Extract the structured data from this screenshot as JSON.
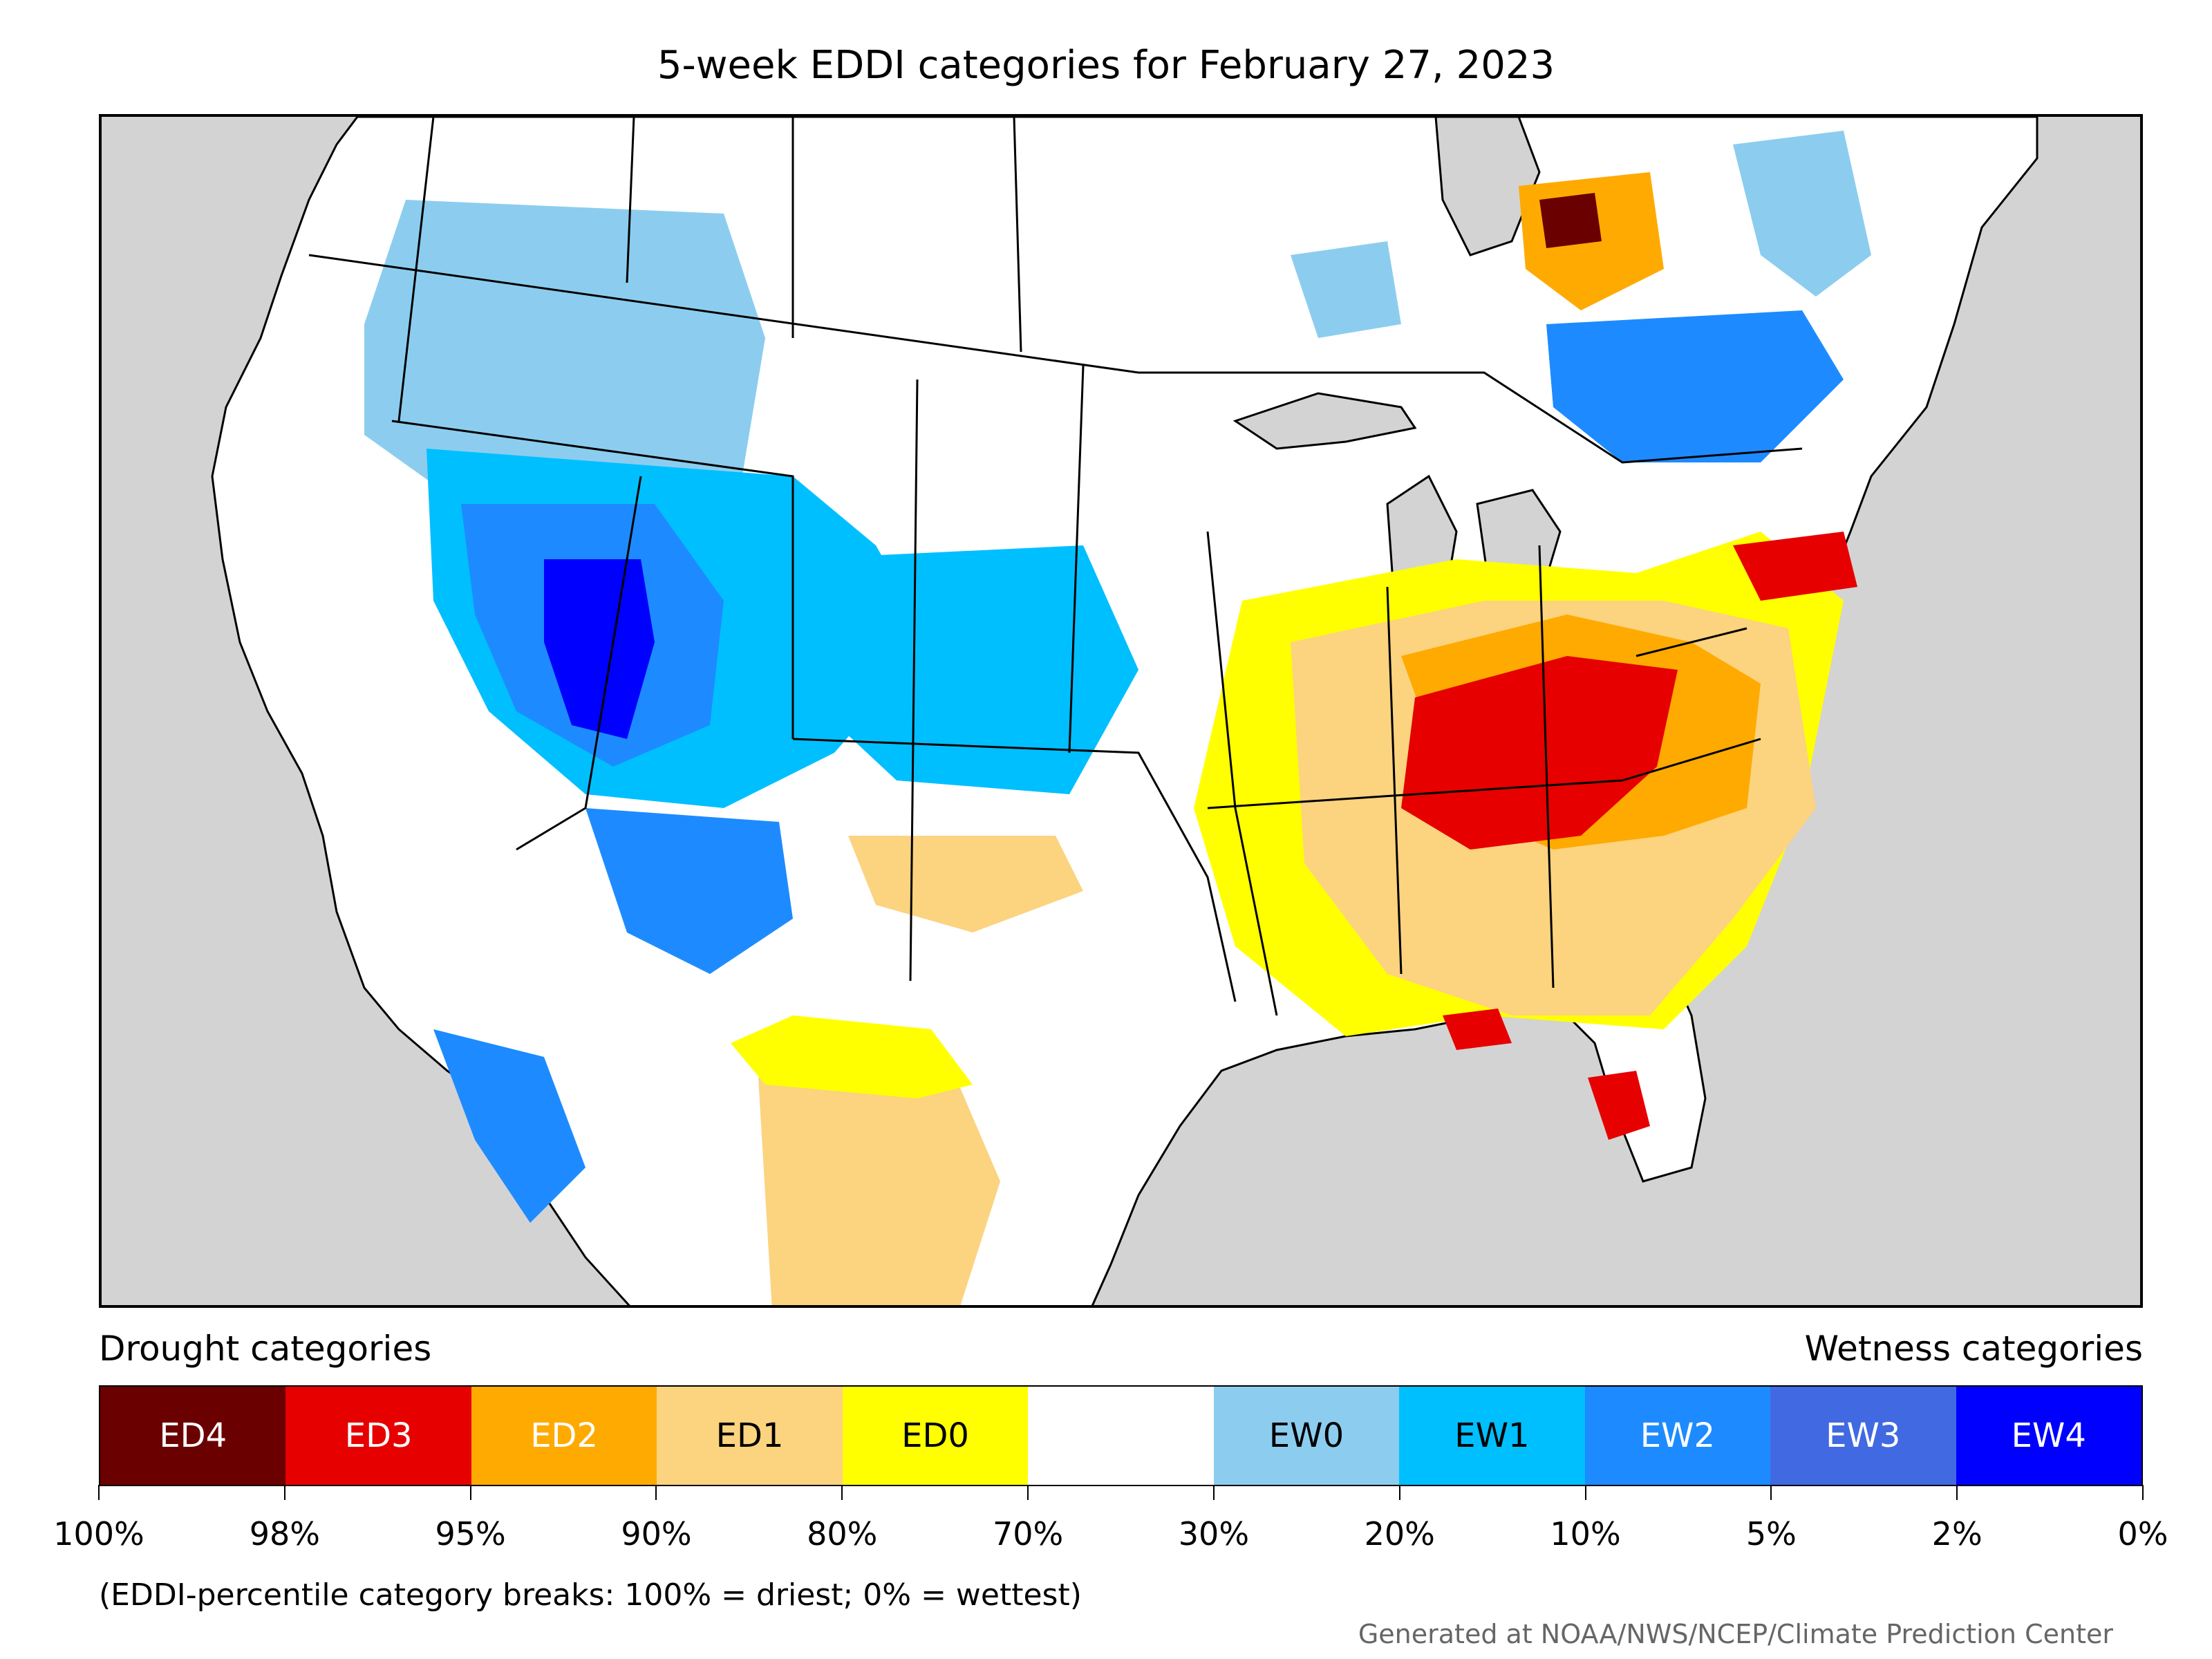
{
  "title": "5-week EDDI categories for February 27, 2023",
  "map": {
    "land_color": "#ffffff",
    "ocean_color": "#d3d3d3",
    "border_color": "#000000"
  },
  "legend": {
    "drought_label": "Drought categories",
    "wetness_label": "Wetness categories",
    "categories": [
      {
        "label": "ED4",
        "color": "#6b0000",
        "text_color": "#ffffff"
      },
      {
        "label": "ED3",
        "color": "#e60000",
        "text_color": "#ffffff"
      },
      {
        "label": "ED2",
        "color": "#ffaa00",
        "text_color": "#ffffff"
      },
      {
        "label": "ED1",
        "color": "#fcd37f",
        "text_color": "#000000"
      },
      {
        "label": "ED0",
        "color": "#ffff00",
        "text_color": "#000000"
      },
      {
        "label": "",
        "color": "#ffffff",
        "text_color": "#000000"
      },
      {
        "label": "EW0",
        "color": "#8ccdef",
        "text_color": "#000000"
      },
      {
        "label": "EW1",
        "color": "#00bfff",
        "text_color": "#000000"
      },
      {
        "label": "EW2",
        "color": "#1d8bff",
        "text_color": "#ffffff"
      },
      {
        "label": "EW3",
        "color": "#4169e1",
        "text_color": "#ffffff"
      },
      {
        "label": "EW4",
        "color": "#0000ff",
        "text_color": "#ffffff"
      }
    ],
    "tick_labels": [
      "100%",
      "98%",
      "95%",
      "90%",
      "80%",
      "70%",
      "30%",
      "20%",
      "10%",
      "5%",
      "2%",
      "0%"
    ]
  },
  "footnote": "(EDDI-percentile category breaks: 100% = driest; 0% = wettest)",
  "credit": "Generated at NOAA/NWS/NCEP/Climate Prediction Center"
}
